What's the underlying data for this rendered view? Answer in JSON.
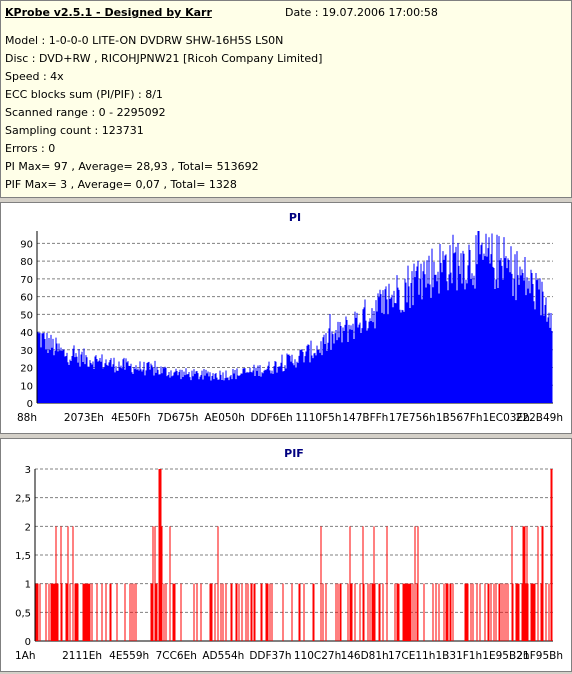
{
  "header": {
    "title": "KProbe v2.5.1 - Designed by Karr",
    "date": "Date : 19.07.2006 17:00:58",
    "lines": [
      "Model : 1-0-0-0 LITE-ON DVDRW SHW-16H5S  LS0N",
      "Disc : DVD+RW , RICOHJPNW21 [Ricoh Company Limited]",
      "Speed : 4x",
      "ECC blocks sum (PI/PIF) : 8/1",
      "Scanned range : 0 - 2295092",
      "Sampling count : 123731",
      "Errors : 0",
      "PI Max= 97 , Average= 28,93 , Total= 513692",
      "PIF Max= 3 , Average= 0,07 , Total= 1328"
    ]
  },
  "colors": {
    "pi": "#0000ff",
    "pif": "#ff0000",
    "grid": "#808080",
    "title": "#000080"
  },
  "chart_data": [
    {
      "type": "area",
      "title": "PI",
      "ylim": [
        0,
        97
      ],
      "yticks": [
        0,
        10,
        20,
        30,
        40,
        50,
        60,
        70,
        80,
        90
      ],
      "x_tick_labels": [
        "88h",
        "2073Eh",
        "4E50Fh",
        "7D675h",
        "AE050h",
        "DDF6Eh",
        "1110F5h",
        "147BFFh",
        "17E756h",
        "1B567Fh",
        "1EC03Eh",
        "222B49h"
      ],
      "x": [
        0,
        0.05,
        0.1,
        0.15,
        0.2,
        0.25,
        0.3,
        0.35,
        0.4,
        0.45,
        0.5,
        0.55,
        0.6,
        0.65,
        0.7,
        0.75,
        0.8,
        0.85,
        0.9,
        0.95,
        1.0
      ],
      "values": [
        38,
        28,
        25,
        22,
        20,
        18,
        16,
        16,
        17,
        20,
        25,
        32,
        42,
        52,
        63,
        73,
        80,
        82,
        80,
        70,
        52
      ],
      "max": 97
    },
    {
      "type": "bar",
      "title": "PIF",
      "ylim": [
        0,
        3
      ],
      "yticks": [
        0,
        0.5,
        1,
        1.5,
        2,
        2.5,
        3
      ],
      "ytick_labels": [
        "0",
        "0,5",
        "1",
        "1,5",
        "2",
        "2,5",
        "3"
      ],
      "x_tick_labels": [
        "1Ah",
        "2111Eh",
        "4E559h",
        "7CC6Eh",
        "AD554h",
        "DDF37h",
        "110C27h",
        "146D81h",
        "17CE11h",
        "1B31F1h",
        "1E95B2h",
        "21F95Bh"
      ],
      "max": 3
    }
  ]
}
